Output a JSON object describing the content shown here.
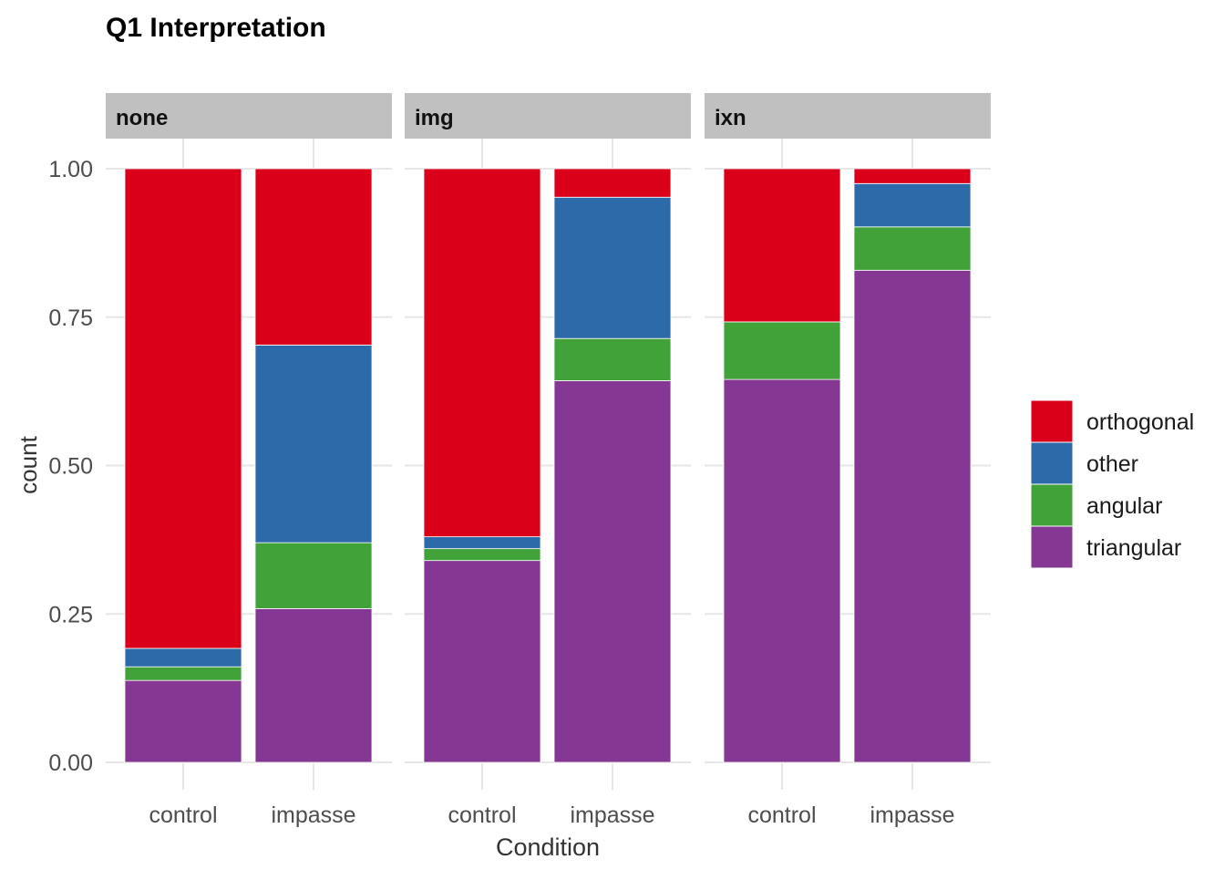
{
  "chart_data": {
    "type": "bar",
    "stacked": true,
    "title": "Q1 Interpretation",
    "xlabel": "Condition",
    "ylabel": "count",
    "ylim": [
      0,
      1
    ],
    "yticks": [
      "0.00",
      "0.25",
      "0.50",
      "0.75",
      "1.00"
    ],
    "ytick_values": [
      0,
      0.25,
      0.5,
      0.75,
      1.0
    ],
    "grid": true,
    "legend_position": "right",
    "categories": [
      "control",
      "impasse"
    ],
    "series_order": [
      "triangular",
      "angular",
      "other",
      "orthogonal"
    ],
    "legend": [
      "orthogonal",
      "other",
      "angular",
      "triangular"
    ],
    "colors": {
      "orthogonal": "#DA001A",
      "other": "#2D6AAA",
      "angular": "#41A23A",
      "triangular": "#853893"
    },
    "facets": [
      {
        "label": "none",
        "bars": [
          {
            "category": "control",
            "triangular": 0.138,
            "angular": 0.023,
            "other": 0.031,
            "orthogonal": 0.808
          },
          {
            "category": "impasse",
            "triangular": 0.259,
            "angular": 0.111,
            "other": 0.333,
            "orthogonal": 0.297
          }
        ]
      },
      {
        "label": "img",
        "bars": [
          {
            "category": "control",
            "triangular": 0.34,
            "angular": 0.02,
            "other": 0.02,
            "orthogonal": 0.62
          },
          {
            "category": "impasse",
            "triangular": 0.643,
            "angular": 0.071,
            "other": 0.238,
            "orthogonal": 0.048
          }
        ]
      },
      {
        "label": "ixn",
        "bars": [
          {
            "category": "control",
            "triangular": 0.645,
            "angular": 0.097,
            "other": 0.0,
            "orthogonal": 0.258
          },
          {
            "category": "impasse",
            "triangular": 0.829,
            "angular": 0.073,
            "other": 0.073,
            "orthogonal": 0.025
          }
        ]
      }
    ]
  }
}
